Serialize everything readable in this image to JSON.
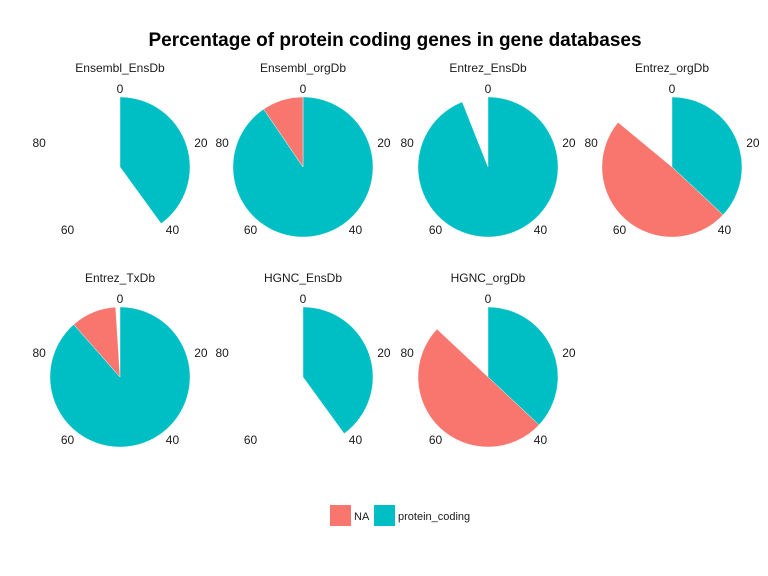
{
  "chart_data": {
    "type": "pie",
    "title": "Percentage of protein coding genes in gene databases",
    "theta_ticks": [
      "0",
      "20",
      "40",
      "60",
      "80"
    ],
    "theta_max": 100,
    "colors": {
      "NA": "#F8766D",
      "protein_coding": "#00BFC4"
    },
    "legend": {
      "position": "bottom",
      "entries": [
        "NA",
        "protein_coding"
      ]
    },
    "facets": [
      {
        "name": "Ensembl_EnsDb",
        "slices": [
          {
            "category": "protein_coding",
            "value": 40
          }
        ]
      },
      {
        "name": "Ensembl_orgDb",
        "slices": [
          {
            "category": "protein_coding",
            "value": 90.5
          },
          {
            "category": "NA",
            "value": 9.5
          }
        ]
      },
      {
        "name": "Entrez_EnsDb",
        "slices": [
          {
            "category": "protein_coding",
            "value": 94
          }
        ]
      },
      {
        "name": "Entrez_orgDb",
        "slices": [
          {
            "category": "protein_coding",
            "value": 37
          },
          {
            "category": "NA",
            "value": 49
          }
        ]
      },
      {
        "name": "Entrez_TxDb",
        "slices": [
          {
            "category": "protein_coding",
            "value": 88.5
          },
          {
            "category": "NA",
            "value": 10.5
          }
        ]
      },
      {
        "name": "HGNC_EnsDb",
        "slices": [
          {
            "category": "protein_coding",
            "value": 40
          }
        ]
      },
      {
        "name": "HGNC_orgDb",
        "slices": [
          {
            "category": "protein_coding",
            "value": 37
          },
          {
            "category": "NA",
            "value": 50
          }
        ]
      }
    ]
  }
}
